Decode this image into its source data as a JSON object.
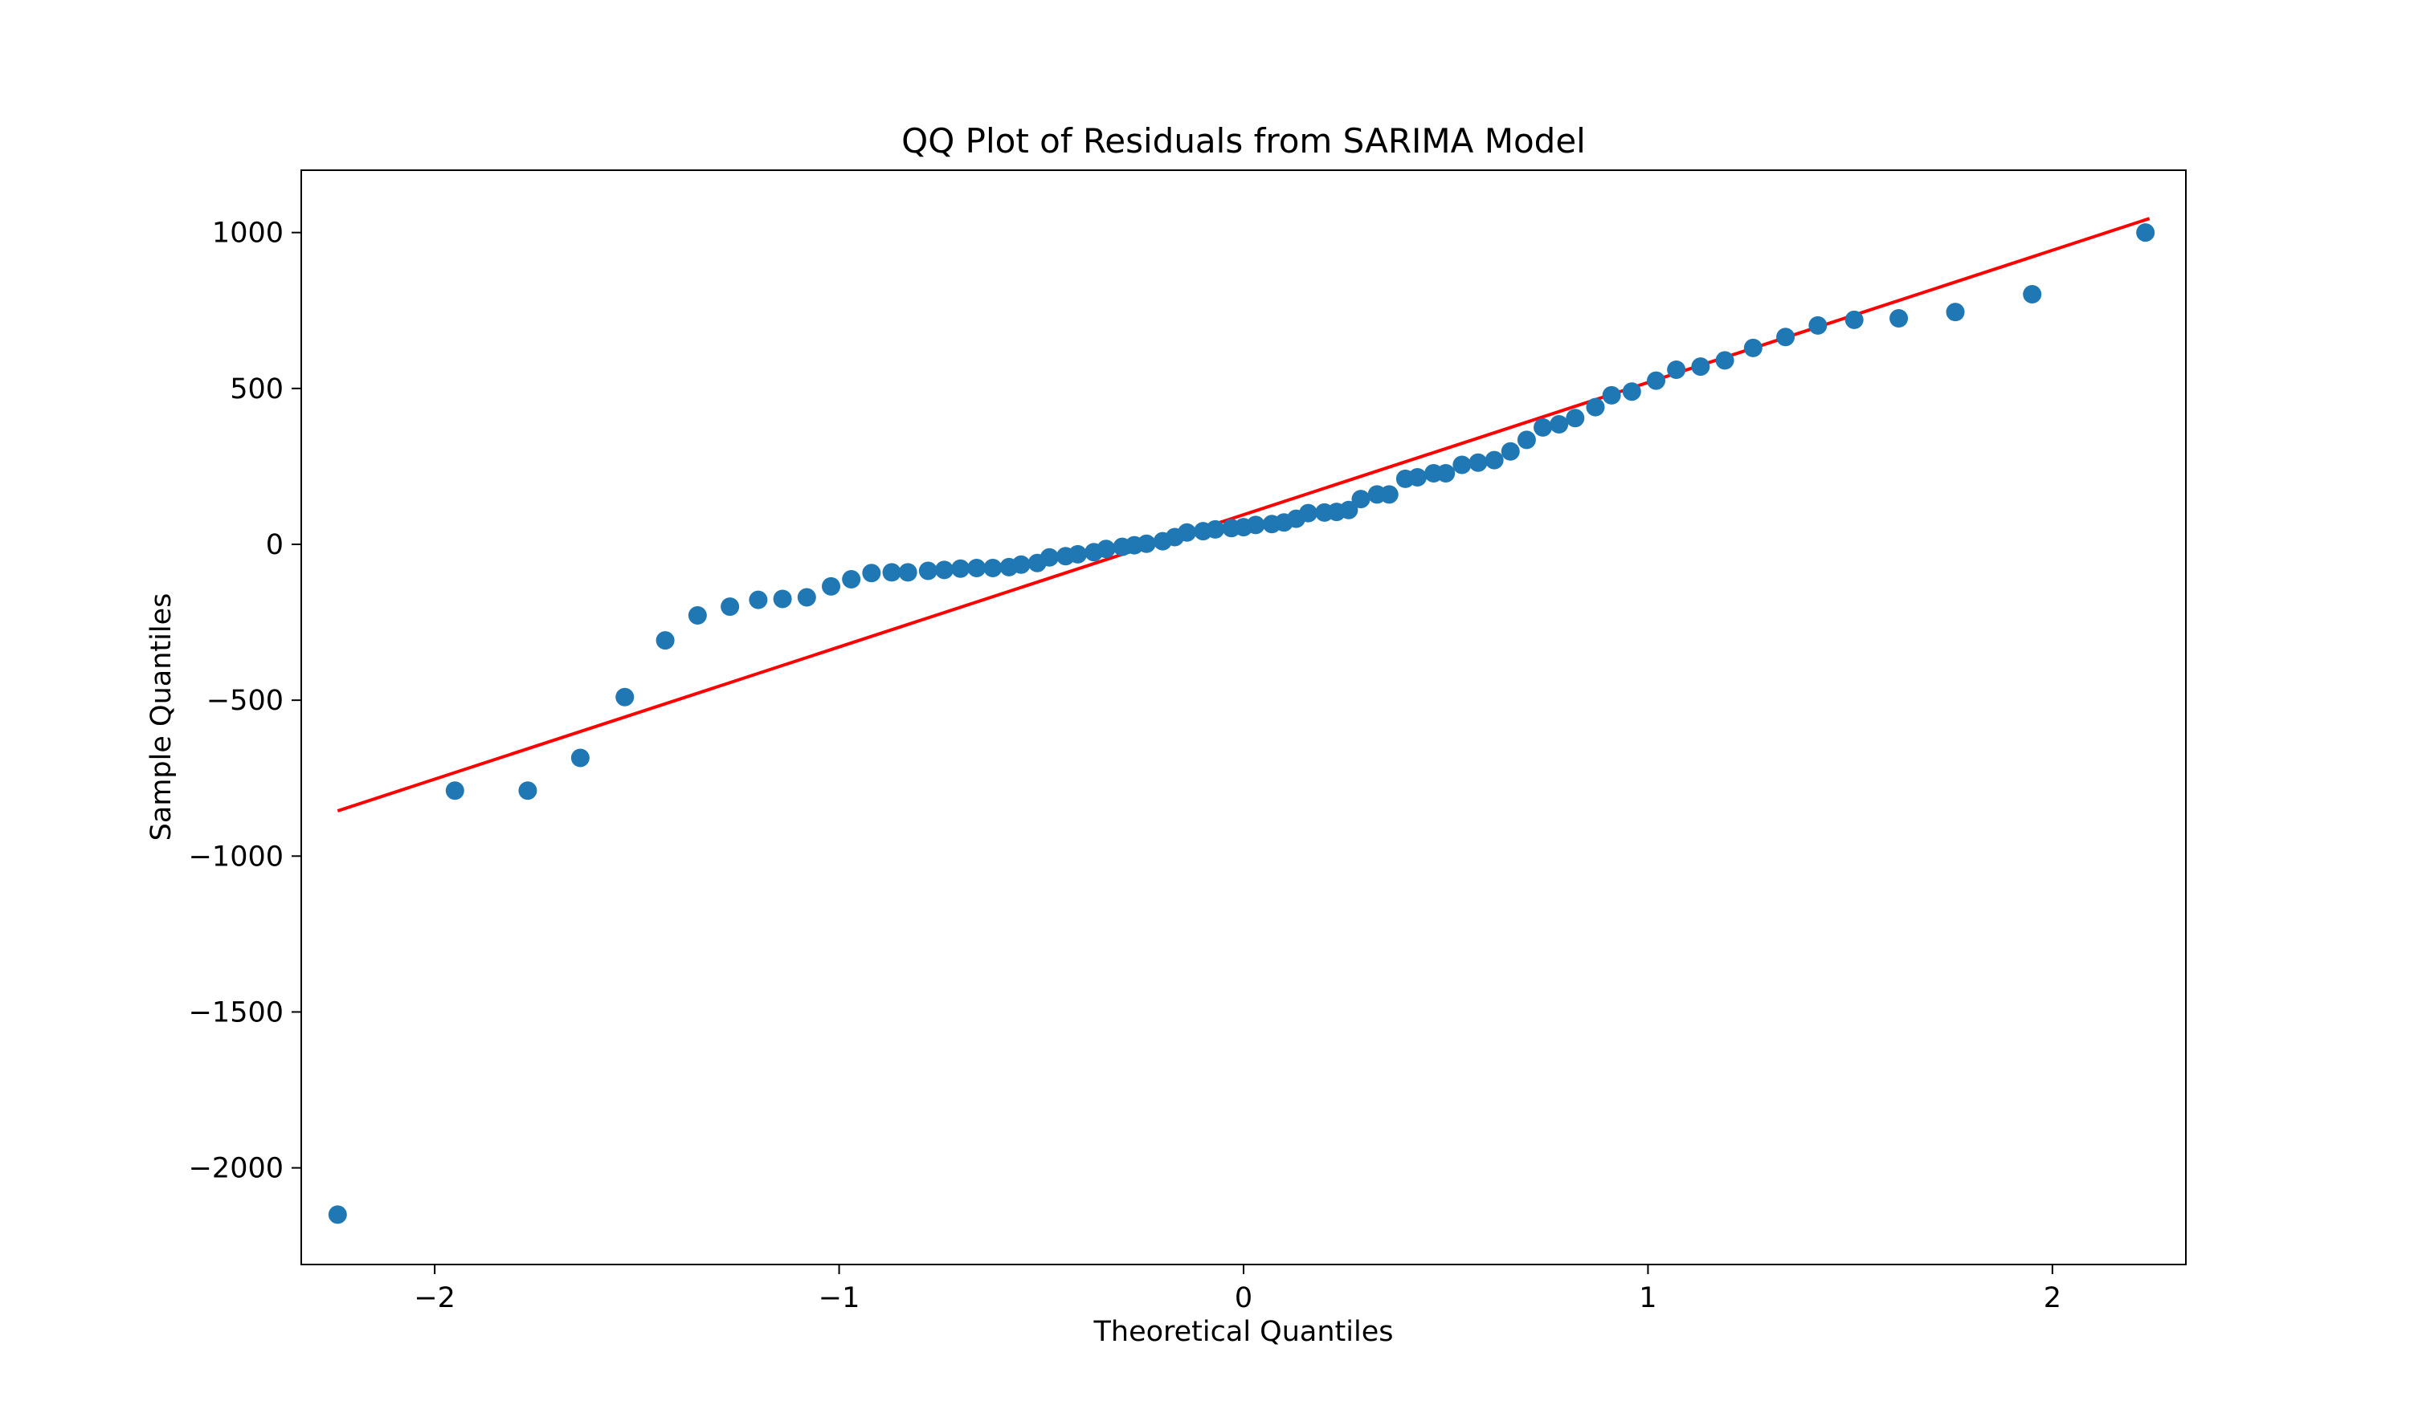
{
  "chart_data": {
    "type": "scatter",
    "title": "QQ Plot of Residuals from SARIMA Model",
    "xlabel": "Theoretical Quantiles",
    "ylabel": "Sample Quantiles",
    "xlim": [
      -2.33,
      2.33
    ],
    "ylim": [
      -2310,
      1200
    ],
    "grid": false,
    "legend": "none",
    "x_ticks": [
      {
        "value": -2,
        "label": "−2"
      },
      {
        "value": -1,
        "label": "−1"
      },
      {
        "value": 0,
        "label": "0"
      },
      {
        "value": 1,
        "label": "1"
      },
      {
        "value": 2,
        "label": "2"
      }
    ],
    "y_ticks": [
      {
        "value": 1000,
        "label": "1000"
      },
      {
        "value": 500,
        "label": "500"
      },
      {
        "value": 0,
        "label": "0"
      },
      {
        "value": -500,
        "label": "−500"
      },
      {
        "value": -1000,
        "label": "−1000"
      },
      {
        "value": -1500,
        "label": "−1500"
      },
      {
        "value": -2000,
        "label": "−2000"
      }
    ],
    "reference_line": {
      "color": "#ff0000",
      "points": [
        [
          -2.24,
          -855
        ],
        [
          2.24,
          1045
        ]
      ]
    },
    "series": [
      {
        "color": "#1f77b4",
        "points": [
          [
            -2.24,
            -2150
          ],
          [
            -1.95,
            -790
          ],
          [
            -1.77,
            -790
          ],
          [
            -1.64,
            -685
          ],
          [
            -1.53,
            -490
          ],
          [
            -1.43,
            -308
          ],
          [
            -1.35,
            -228
          ],
          [
            -1.27,
            -200
          ],
          [
            -1.2,
            -178
          ],
          [
            -1.14,
            -175
          ],
          [
            -1.08,
            -170
          ],
          [
            -1.02,
            -135
          ],
          [
            -0.97,
            -112
          ],
          [
            -0.92,
            -92
          ],
          [
            -0.87,
            -90
          ],
          [
            -0.83,
            -90
          ],
          [
            -0.78,
            -85
          ],
          [
            -0.74,
            -82
          ],
          [
            -0.7,
            -78
          ],
          [
            -0.66,
            -76
          ],
          [
            -0.62,
            -76
          ],
          [
            -0.58,
            -73
          ],
          [
            -0.55,
            -65
          ],
          [
            -0.51,
            -60
          ],
          [
            -0.48,
            -42
          ],
          [
            -0.44,
            -38
          ],
          [
            -0.41,
            -32
          ],
          [
            -0.37,
            -25
          ],
          [
            -0.34,
            -15
          ],
          [
            -0.3,
            -8
          ],
          [
            -0.27,
            -3
          ],
          [
            -0.24,
            2
          ],
          [
            -0.2,
            10
          ],
          [
            -0.17,
            23
          ],
          [
            -0.14,
            38
          ],
          [
            -0.1,
            42
          ],
          [
            -0.07,
            48
          ],
          [
            -0.03,
            52
          ],
          [
            0.0,
            55
          ],
          [
            0.03,
            62
          ],
          [
            0.07,
            65
          ],
          [
            0.1,
            70
          ],
          [
            0.13,
            82
          ],
          [
            0.16,
            100
          ],
          [
            0.2,
            102
          ],
          [
            0.23,
            104
          ],
          [
            0.26,
            110
          ],
          [
            0.29,
            145
          ],
          [
            0.33,
            160
          ],
          [
            0.36,
            160
          ],
          [
            0.4,
            210
          ],
          [
            0.43,
            215
          ],
          [
            0.47,
            228
          ],
          [
            0.5,
            228
          ],
          [
            0.54,
            255
          ],
          [
            0.58,
            262
          ],
          [
            0.62,
            270
          ],
          [
            0.66,
            298
          ],
          [
            0.7,
            335
          ],
          [
            0.74,
            375
          ],
          [
            0.78,
            385
          ],
          [
            0.82,
            405
          ],
          [
            0.87,
            440
          ],
          [
            0.91,
            478
          ],
          [
            0.96,
            490
          ],
          [
            1.02,
            525
          ],
          [
            1.07,
            560
          ],
          [
            1.13,
            570
          ],
          [
            1.19,
            590
          ],
          [
            1.26,
            630
          ],
          [
            1.34,
            665
          ],
          [
            1.42,
            702
          ],
          [
            1.51,
            720
          ],
          [
            1.62,
            725
          ],
          [
            1.76,
            745
          ],
          [
            1.95,
            802
          ],
          [
            2.23,
            1000
          ]
        ]
      }
    ]
  }
}
